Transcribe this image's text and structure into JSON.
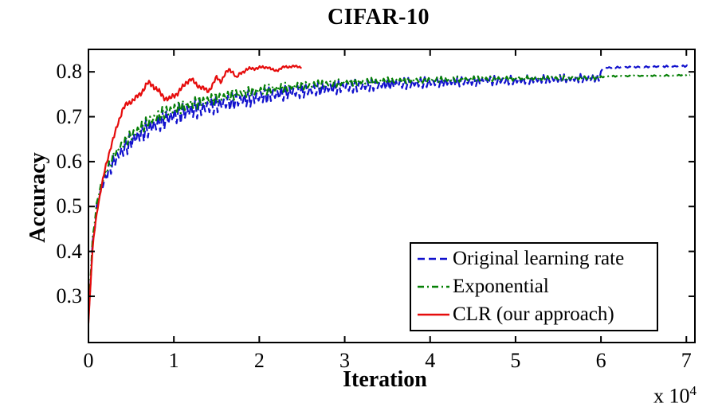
{
  "chart_data": {
    "type": "line",
    "title": "CIFAR-10",
    "xlabel": "Iteration",
    "ylabel": "Accuracy",
    "x_scale_prefix": "x 10",
    "x_scale_exp": "4",
    "x_unit": "iterations (x 10^4)",
    "xlim": [
      0,
      7.1
    ],
    "ylim": [
      0.197,
      0.85
    ],
    "xticks": [
      0,
      1,
      2,
      3,
      4,
      5,
      6,
      7
    ],
    "yticks": [
      0.3,
      0.4,
      0.5,
      0.6,
      0.7,
      0.8
    ],
    "grid": false,
    "legend_position": "lower right",
    "axis_color": "#000000",
    "series": [
      {
        "name": "Original learning rate",
        "color": "#1111cd",
        "dash": "9 5",
        "noise_style": "zigzag",
        "trend": [
          [
            0,
            0.245
          ],
          [
            0.02,
            0.32
          ],
          [
            0.05,
            0.42
          ],
          [
            0.08,
            0.465
          ],
          [
            0.1,
            0.5
          ],
          [
            0.15,
            0.54
          ],
          [
            0.2,
            0.565
          ],
          [
            0.25,
            0.585
          ],
          [
            0.3,
            0.6
          ],
          [
            0.4,
            0.625
          ],
          [
            0.5,
            0.645
          ],
          [
            0.6,
            0.66
          ],
          [
            0.7,
            0.673
          ],
          [
            0.8,
            0.684
          ],
          [
            0.9,
            0.694
          ],
          [
            1,
            0.702
          ],
          [
            1.2,
            0.714
          ],
          [
            1.4,
            0.722
          ],
          [
            1.6,
            0.73
          ],
          [
            1.8,
            0.737
          ],
          [
            2,
            0.744
          ],
          [
            2.2,
            0.75
          ],
          [
            2.5,
            0.757
          ],
          [
            2.8,
            0.763
          ],
          [
            3,
            0.766
          ],
          [
            3.5,
            0.772
          ],
          [
            4,
            0.776
          ],
          [
            4.5,
            0.779
          ],
          [
            5,
            0.781
          ],
          [
            5.5,
            0.784
          ],
          [
            5.98,
            0.786
          ],
          [
            6.02,
            0.809
          ],
          [
            6.2,
            0.81
          ],
          [
            6.5,
            0.811
          ],
          [
            7.05,
            0.813
          ]
        ],
        "noise": [
          [
            0,
            0.004
          ],
          [
            0.1,
            0.012
          ],
          [
            0.3,
            0.02
          ],
          [
            0.6,
            0.024
          ],
          [
            1,
            0.025
          ],
          [
            1.5,
            0.022
          ],
          [
            2,
            0.02
          ],
          [
            3,
            0.016
          ],
          [
            4,
            0.013
          ],
          [
            5,
            0.011
          ],
          [
            5.95,
            0.01
          ],
          [
            6.02,
            0.002
          ],
          [
            7.05,
            0.002
          ]
        ]
      },
      {
        "name": "Exponential",
        "color": "#068006",
        "dash": "8 4 2 4",
        "noise_style": "zigzag",
        "trend": [
          [
            0,
            0.248
          ],
          [
            0.02,
            0.33
          ],
          [
            0.05,
            0.43
          ],
          [
            0.1,
            0.51
          ],
          [
            0.15,
            0.55
          ],
          [
            0.2,
            0.575
          ],
          [
            0.3,
            0.615
          ],
          [
            0.4,
            0.64
          ],
          [
            0.5,
            0.658
          ],
          [
            0.6,
            0.673
          ],
          [
            0.7,
            0.688
          ],
          [
            0.8,
            0.7
          ],
          [
            0.9,
            0.71
          ],
          [
            1,
            0.717
          ],
          [
            1.2,
            0.728
          ],
          [
            1.4,
            0.737
          ],
          [
            1.6,
            0.745
          ],
          [
            1.8,
            0.752
          ],
          [
            2,
            0.758
          ],
          [
            2.2,
            0.763
          ],
          [
            2.5,
            0.769
          ],
          [
            3,
            0.776
          ],
          [
            3.5,
            0.78
          ],
          [
            4,
            0.782
          ],
          [
            4.5,
            0.784
          ],
          [
            5,
            0.785
          ],
          [
            5.5,
            0.786
          ],
          [
            5.98,
            0.787
          ],
          [
            6.05,
            0.79
          ],
          [
            6.5,
            0.791
          ],
          [
            7.05,
            0.793
          ]
        ],
        "noise": [
          [
            0,
            0.003
          ],
          [
            0.3,
            0.012
          ],
          [
            0.6,
            0.015
          ],
          [
            1,
            0.016
          ],
          [
            2,
            0.012
          ],
          [
            3,
            0.009
          ],
          [
            4,
            0.007
          ],
          [
            5,
            0.006
          ],
          [
            5.95,
            0.005
          ],
          [
            6.05,
            0.0015
          ],
          [
            7.05,
            0.0015
          ]
        ]
      },
      {
        "name": "CLR (our approach)",
        "color": "#e60c0c",
        "dash": "",
        "noise_style": "smooth",
        "trend": [
          [
            0,
            0.24
          ],
          [
            0.02,
            0.31
          ],
          [
            0.04,
            0.38
          ],
          [
            0.06,
            0.43
          ],
          [
            0.08,
            0.46
          ],
          [
            0.1,
            0.49
          ],
          [
            0.13,
            0.52
          ],
          [
            0.16,
            0.55
          ],
          [
            0.2,
            0.59
          ],
          [
            0.25,
            0.625
          ],
          [
            0.3,
            0.655
          ],
          [
            0.35,
            0.69
          ],
          [
            0.4,
            0.715
          ],
          [
            0.45,
            0.728
          ],
          [
            0.5,
            0.735
          ],
          [
            0.55,
            0.74
          ],
          [
            0.6,
            0.75
          ],
          [
            0.65,
            0.763
          ],
          [
            0.7,
            0.775
          ],
          [
            0.75,
            0.772
          ],
          [
            0.8,
            0.76
          ],
          [
            0.85,
            0.75
          ],
          [
            0.9,
            0.742
          ],
          [
            0.95,
            0.738
          ],
          [
            1,
            0.748
          ],
          [
            1.05,
            0.754
          ],
          [
            1.1,
            0.764
          ],
          [
            1.15,
            0.779
          ],
          [
            1.2,
            0.783
          ],
          [
            1.25,
            0.774
          ],
          [
            1.3,
            0.768
          ],
          [
            1.35,
            0.762
          ],
          [
            1.4,
            0.757
          ],
          [
            1.45,
            0.77
          ],
          [
            1.5,
            0.787
          ],
          [
            1.55,
            0.779
          ],
          [
            1.6,
            0.795
          ],
          [
            1.65,
            0.805
          ],
          [
            1.7,
            0.799
          ],
          [
            1.73,
            0.785
          ],
          [
            1.78,
            0.797
          ],
          [
            1.85,
            0.805
          ],
          [
            1.9,
            0.807
          ],
          [
            2,
            0.809
          ],
          [
            2.1,
            0.811
          ],
          [
            2.15,
            0.804
          ],
          [
            2.2,
            0.803
          ],
          [
            2.3,
            0.811
          ],
          [
            2.4,
            0.812
          ],
          [
            2.5,
            0.811
          ]
        ],
        "noise": [
          [
            0,
            0.002
          ],
          [
            0.3,
            0.007
          ],
          [
            0.6,
            0.008
          ],
          [
            1,
            0.008
          ],
          [
            1.5,
            0.006
          ],
          [
            2,
            0.004
          ],
          [
            2.5,
            0.003
          ]
        ]
      }
    ]
  }
}
